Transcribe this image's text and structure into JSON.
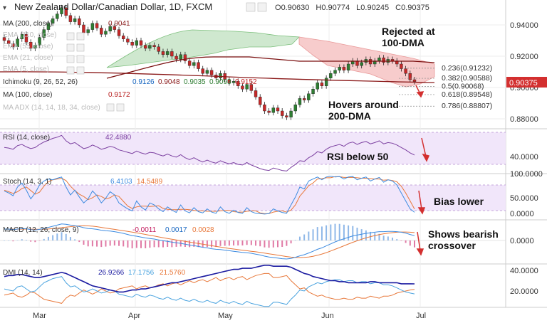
{
  "header": {
    "pair": "New Zealand Dollar/Canadian Dollar, 1D, FXCM",
    "open_label": "O",
    "open": "0.90630",
    "high_label": "H",
    "high": "0.90774",
    "low_label": "L",
    "low": "0.90245",
    "close_label": "C",
    "close": "0.90375"
  },
  "legends": {
    "ma200": {
      "label": "MA (200, close)",
      "value": "0.9041"
    },
    "ema110": {
      "label": "EMA (110, close)"
    },
    "ema55": {
      "label": "EMA (55, close)"
    },
    "ema21": {
      "label": "EMA (21, close)"
    },
    "ema5": {
      "label": "EMA (5, close)"
    },
    "ichimoku": {
      "label": "Ichimoku (9, 26, 52, 26)",
      "v1": "0.9126",
      "v2": "0.9048",
      "v3": "0.9035",
      "v4": "0.9093",
      "v5": "0.9152"
    },
    "ma100": {
      "label": "MA (100, close)",
      "value": "0.9172"
    },
    "maadx": {
      "label": "MA ADX (14, 14, 18, 34, close)"
    }
  },
  "annotations": {
    "rejected": "Rejected at",
    "rejected2": "100-DMA",
    "hovers": "Hovers around",
    "hovers2": "200-DMA",
    "rsi": "RSI below 50",
    "bias": "Bias lower",
    "macd1": "Shows bearish",
    "macd2": "crossover"
  },
  "price_axis": {
    "ticks": [
      "0.94000",
      "0.92000",
      "0.90000",
      "0.88000"
    ],
    "current": "0.90375"
  },
  "fib_levels": [
    {
      "label": "0.236(0.91232)",
      "value": 0.91232
    },
    {
      "label": "0.382(0.90588)",
      "value": 0.90588
    },
    {
      "label": "0.5(0.90068)",
      "value": 0.90068
    },
    {
      "label": "0.618(0.89548)",
      "value": 0.89548
    },
    {
      "label": "0.786(0.88807)",
      "value": 0.88807
    }
  ],
  "rsi": {
    "label": "RSI (14, close)",
    "value": "42.4880",
    "ticks": [
      "40.0000"
    ]
  },
  "stoch": {
    "label": "Stoch (14, 3, 1)",
    "k": "6.4103",
    "d": "14.5489",
    "ticks": [
      "100.0000",
      "50.0000",
      "0.0000"
    ]
  },
  "macd": {
    "label": "MACD (12, 26, close, 9)",
    "hist": "-0.0011",
    "macd": "0.0017",
    "signal": "0.0028",
    "ticks": [
      "0.0000"
    ]
  },
  "dmi": {
    "label": "DMI (14, 14)",
    "adx": "26.9266",
    "plus": "17.1756",
    "minus": "21.5760",
    "ticks": [
      "40.0000",
      "20.0000"
    ]
  },
  "time_axis": [
    "Mar",
    "Apr",
    "May",
    "Jun",
    "Jul"
  ],
  "colors": {
    "up": "#2e7d32",
    "down": "#c62828",
    "ma200": "#8b1a1a",
    "ma100": "#b71c1c",
    "rsi": "#7b3fa0",
    "stochK": "#3d8be0",
    "stochD": "#e8783a",
    "dmiAdx": "#1a1aa0",
    "dmiPlus": "#4aa3df",
    "dmiMinus": "#e8783a",
    "cloudUp": "#cfe8cf",
    "cloudDown": "#f7cccc",
    "arrow": "#d32f2f"
  },
  "chart_data": {
    "type": "candlestick",
    "title": "New Zealand Dollar/Canadian Dollar, 1D, FXCM",
    "price_range": [
      0.87,
      0.955
    ],
    "close_series": [
      0.93,
      0.928,
      0.926,
      0.931,
      0.934,
      0.929,
      0.925,
      0.927,
      0.932,
      0.937,
      0.941,
      0.944,
      0.947,
      0.951,
      0.946,
      0.942,
      0.944,
      0.94,
      0.935,
      0.937,
      0.941,
      0.938,
      0.934,
      0.936,
      0.939,
      0.937,
      0.933,
      0.931,
      0.929,
      0.927,
      0.93,
      0.927,
      0.925,
      0.927,
      0.926,
      0.923,
      0.921,
      0.923,
      0.92,
      0.918,
      0.921,
      0.917,
      0.914,
      0.916,
      0.912,
      0.909,
      0.911,
      0.908,
      0.906,
      0.909,
      0.905,
      0.903,
      0.904,
      0.901,
      0.899,
      0.902,
      0.898,
      0.894,
      0.889,
      0.885,
      0.884,
      0.887,
      0.885,
      0.882,
      0.881,
      0.885,
      0.889,
      0.893,
      0.892,
      0.896,
      0.899,
      0.903,
      0.901,
      0.906,
      0.909,
      0.911,
      0.913,
      0.911,
      0.915,
      0.917,
      0.914,
      0.916,
      0.918,
      0.915,
      0.917,
      0.919,
      0.916,
      0.918,
      0.917,
      0.915,
      0.912,
      0.909,
      0.905,
      0.9038
    ],
    "rsi_series": [
      55,
      54,
      52,
      58,
      60,
      56,
      53,
      55,
      60,
      64,
      67,
      70,
      72,
      75,
      66,
      61,
      63,
      58,
      53,
      55,
      59,
      56,
      52,
      54,
      57,
      55,
      51,
      49,
      47,
      45,
      49,
      46,
      44,
      47,
      46,
      43,
      41,
      44,
      41,
      39,
      43,
      38,
      35,
      38,
      34,
      31,
      34,
      31,
      29,
      33,
      30,
      28,
      30,
      27,
      26,
      30,
      26,
      23,
      20,
      18,
      17,
      21,
      19,
      17,
      16,
      22,
      27,
      33,
      32,
      38,
      42,
      48,
      46,
      52,
      56,
      58,
      60,
      57,
      62,
      64,
      60,
      63,
      65,
      61,
      63,
      66,
      61,
      63,
      62,
      59,
      55,
      51,
      46,
      42.49
    ],
    "stoch_k": [
      60,
      55,
      48,
      70,
      80,
      62,
      40,
      55,
      75,
      85,
      90,
      88,
      92,
      95,
      70,
      50,
      62,
      45,
      30,
      40,
      60,
      48,
      30,
      42,
      58,
      50,
      30,
      22,
      15,
      10,
      35,
      20,
      12,
      30,
      25,
      15,
      8,
      20,
      12,
      6,
      25,
      10,
      5,
      18,
      8,
      5,
      15,
      7,
      4,
      20,
      8,
      4,
      12,
      6,
      4,
      18,
      8,
      4,
      3,
      2,
      3,
      15,
      10,
      6,
      4,
      25,
      45,
      70,
      65,
      85,
      90,
      95,
      88,
      95,
      97,
      95,
      96,
      90,
      95,
      96,
      88,
      92,
      95,
      85,
      90,
      94,
      82,
      88,
      85,
      75,
      55,
      35,
      15,
      6.41
    ],
    "stoch_d": [
      62,
      58,
      54,
      58,
      66,
      70,
      61,
      52,
      57,
      72,
      83,
      88,
      90,
      92,
      86,
      72,
      61,
      52,
      46,
      38,
      43,
      50,
      46,
      40,
      43,
      50,
      46,
      34,
      22,
      16,
      20,
      22,
      22,
      21,
      22,
      23,
      16,
      14,
      13,
      13,
      14,
      14,
      13,
      11,
      10,
      10,
      9,
      9,
      9,
      10,
      11,
      11,
      8,
      7,
      7,
      9,
      10,
      10,
      5,
      3,
      3,
      7,
      9,
      10,
      7,
      12,
      25,
      47,
      60,
      73,
      80,
      90,
      91,
      93,
      93,
      96,
      96,
      94,
      94,
      94,
      93,
      92,
      92,
      91,
      90,
      90,
      87,
      88,
      86,
      83,
      72,
      55,
      35,
      14.55
    ],
    "macd_line": [
      0.004,
      0.004,
      0.0038,
      0.004,
      0.0042,
      0.0041,
      0.0038,
      0.0037,
      0.0039,
      0.0042,
      0.0046,
      0.005,
      0.0054,
      0.0058,
      0.0057,
      0.0054,
      0.0052,
      0.0049,
      0.0045,
      0.0042,
      0.0041,
      0.0039,
      0.0036,
      0.0034,
      0.0033,
      0.0031,
      0.0028,
      0.0025,
      0.0021,
      0.0017,
      0.0015,
      0.0012,
      0.0009,
      0.0007,
      0.0005,
      0.0002,
      -0.0001,
      -0.0003,
      -0.0006,
      -0.0008,
      -0.001,
      -0.0013,
      -0.0016,
      -0.0018,
      -0.0021,
      -0.0024,
      -0.0026,
      -0.0029,
      -0.0031,
      -0.0032,
      -0.0034,
      -0.0036,
      -0.0038,
      -0.004,
      -0.0042,
      -0.0043,
      -0.0045,
      -0.0048,
      -0.0051,
      -0.0055,
      -0.0058,
      -0.006,
      -0.0062,
      -0.0064,
      -0.0065,
      -0.0063,
      -0.0059,
      -0.0054,
      -0.005,
      -0.0044,
      -0.0038,
      -0.0031,
      -0.0026,
      -0.0019,
      -0.0012,
      -0.0005,
      0.0001,
      0.0006,
      0.0011,
      0.0016,
      0.0019,
      0.0022,
      0.0025,
      0.0027,
      0.0029,
      0.0031,
      0.0031,
      0.0032,
      0.0032,
      0.0031,
      0.0029,
      0.0026,
      0.0021,
      0.0017
    ],
    "dmi_adx": [
      34,
      35,
      35,
      36,
      36,
      35,
      34,
      33,
      33,
      34,
      35,
      36,
      37,
      38,
      37,
      35,
      33,
      31,
      29,
      27,
      25,
      24,
      23,
      22,
      21,
      20,
      19,
      19,
      20,
      21,
      21,
      22,
      22,
      23,
      24,
      25,
      26,
      27,
      28,
      28,
      29,
      30,
      31,
      32,
      33,
      34,
      35,
      36,
      37,
      38,
      39,
      40,
      41,
      41,
      42,
      42,
      42,
      43,
      44,
      45,
      45,
      44,
      44,
      44,
      44,
      43,
      41,
      39,
      37,
      36,
      34,
      33,
      32,
      31,
      30,
      30,
      29,
      29,
      28,
      28,
      28,
      28,
      28,
      29,
      29,
      28,
      28,
      28,
      28,
      28,
      27,
      27,
      27,
      26.93
    ],
    "dmi_plus": [
      22,
      21,
      20,
      24,
      25,
      22,
      19,
      20,
      24,
      28,
      30,
      32,
      33,
      34,
      28,
      24,
      25,
      22,
      19,
      20,
      22,
      20,
      18,
      19,
      21,
      20,
      17,
      16,
      15,
      14,
      17,
      15,
      14,
      16,
      15,
      13,
      12,
      14,
      12,
      11,
      13,
      11,
      10,
      12,
      10,
      9,
      11,
      9,
      8,
      11,
      9,
      8,
      10,
      8,
      7,
      10,
      8,
      7,
      6,
      5,
      5,
      9,
      9,
      8,
      7,
      12,
      16,
      21,
      20,
      24,
      26,
      28,
      27,
      29,
      30,
      31,
      31,
      29,
      30,
      30,
      28,
      29,
      29,
      27,
      28,
      28,
      26,
      26,
      25,
      23,
      21,
      19,
      18,
      17.18
    ],
    "dmi_minus": [
      16,
      17,
      18,
      15,
      14,
      16,
      19,
      18,
      15,
      12,
      11,
      10,
      9,
      8,
      13,
      16,
      15,
      18,
      21,
      19,
      17,
      19,
      22,
      20,
      18,
      19,
      22,
      23,
      24,
      25,
      22,
      24,
      25,
      23,
      24,
      26,
      27,
      25,
      27,
      28,
      26,
      28,
      30,
      28,
      30,
      31,
      29,
      31,
      33,
      30,
      32,
      33,
      31,
      33,
      34,
      31,
      33,
      35,
      36,
      37,
      37,
      33,
      33,
      34,
      35,
      30,
      26,
      22,
      23,
      19,
      17,
      15,
      16,
      14,
      13,
      12,
      12,
      13,
      12,
      12,
      14,
      13,
      13,
      15,
      14,
      13,
      15,
      15,
      16,
      18,
      19,
      20,
      21,
      21.58
    ]
  }
}
